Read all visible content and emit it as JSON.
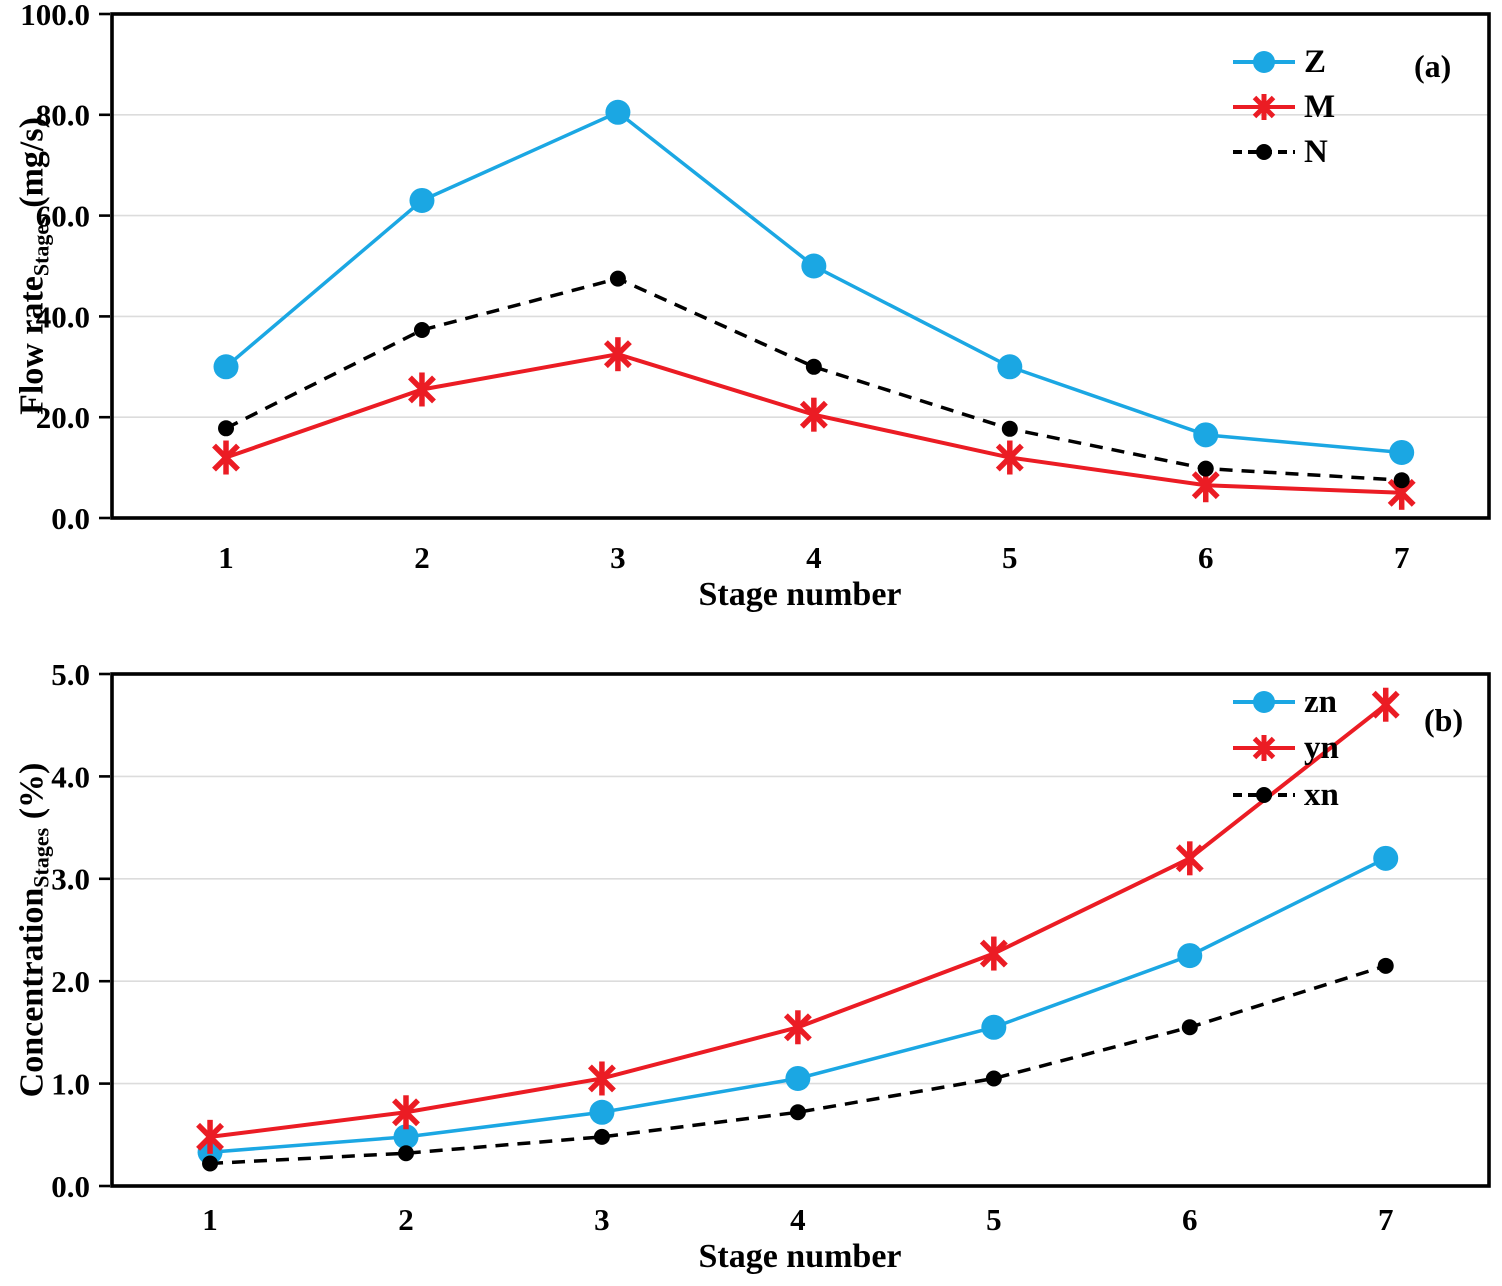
{
  "chart_data": [
    {
      "type": "line",
      "panel_label": "(a)",
      "xlabel": "Stage number",
      "ylabel": "Flow rateStages (mg/s)",
      "ylabel_main": "Flow rate",
      "ylabel_sub": "Stages",
      "ylabel_unit": " (mg/s)",
      "categories": [
        "1",
        "2",
        "3",
        "4",
        "5",
        "6",
        "7"
      ],
      "ylim": [
        0,
        100
      ],
      "yticks": [
        0,
        20,
        40,
        60,
        80,
        100
      ],
      "ytick_labels": [
        "0.0",
        "20.0",
        "40.0",
        "60.0",
        "80.0",
        "100.0"
      ],
      "grid": "horizontal",
      "legend_position": "top-right",
      "series": [
        {
          "name": "Z",
          "color": "#1BA7E3",
          "marker": "circle",
          "line": "solid",
          "values": [
            30,
            63,
            80.5,
            50,
            30,
            16.5,
            13
          ]
        },
        {
          "name": "M",
          "color": "#EB1C24",
          "marker": "asterisk",
          "line": "solid",
          "values": [
            12,
            25.5,
            32.5,
            20.5,
            12,
            6.5,
            5
          ]
        },
        {
          "name": "N",
          "color": "#000000",
          "marker": "dot",
          "line": "dashed",
          "values": [
            17.8,
            37.3,
            47.5,
            30,
            17.7,
            9.8,
            7.5
          ]
        }
      ]
    },
    {
      "type": "line",
      "panel_label": "(b)",
      "xlabel": "Stage number",
      "ylabel": "ConcentrationStages (%)",
      "ylabel_main": "Concentration",
      "ylabel_sub": "Stages",
      "ylabel_unit": " (%)",
      "categories": [
        "1",
        "2",
        "3",
        "4",
        "5",
        "6",
        "7"
      ],
      "ylim": [
        0,
        5
      ],
      "yticks": [
        0,
        1,
        2,
        3,
        4,
        5
      ],
      "ytick_labels": [
        "0.0",
        "1.0",
        "2.0",
        "3.0",
        "4.0",
        "5.0"
      ],
      "grid": "horizontal",
      "legend_position": "top-right",
      "series": [
        {
          "name": "zn",
          "color": "#1BA7E3",
          "marker": "circle",
          "line": "solid",
          "values": [
            0.33,
            0.48,
            0.72,
            1.05,
            1.55,
            2.25,
            3.2
          ]
        },
        {
          "name": "yn",
          "color": "#EB1C24",
          "marker": "asterisk",
          "line": "solid",
          "values": [
            0.48,
            0.72,
            1.05,
            1.55,
            2.27,
            3.2,
            4.7
          ]
        },
        {
          "name": "xn",
          "color": "#000000",
          "marker": "dot",
          "line": "dashed",
          "values": [
            0.22,
            0.32,
            0.48,
            0.72,
            1.05,
            1.55,
            2.15
          ]
        }
      ]
    }
  ],
  "style_colors": {
    "grid": "#DCDCDC",
    "axis": "#000000"
  }
}
